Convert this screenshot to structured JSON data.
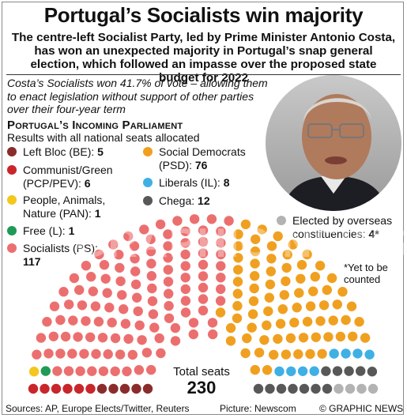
{
  "header": {
    "title": "Portugal’s Socialists win majority",
    "subtitle": "The centre-left Socialist Party, led by Prime Minister Antonio Costa, has won an unexpected majority in Portugal’s snap general election, which followed an impasse over the proposed state budget for 2022"
  },
  "intro": "Costa’s Socialists won 41.7% of vote – allowing them to enact legislation without support of other parties over their four-year term",
  "panel": {
    "title": "Portugal’s Incoming Parliament",
    "subtitle": "Results with all national seats allocated"
  },
  "legend": [
    {
      "label": "Left Bloc (BE): ",
      "value": "5",
      "color": "#8b2c2c"
    },
    {
      "label": "Communist/Green (PCP/PEV): ",
      "value": "6",
      "color": "#c8262b"
    },
    {
      "label": "People, Animals, Nature (PAN): ",
      "value": "1",
      "color": "#f3c71d"
    },
    {
      "label": "Free (L): ",
      "value": "1",
      "color": "#1f9a57"
    },
    {
      "label": "Socialists (PS): ",
      "value": "117",
      "color": "#ec6f6f"
    },
    {
      "label": "Social Democrats (PSD): ",
      "value": "76",
      "color": "#f0a020"
    },
    {
      "label": "Liberals (IL): ",
      "value": "8",
      "color": "#3fb0e4"
    },
    {
      "label": "Chega: ",
      "value": "12",
      "color": "#585858"
    },
    {
      "label": "Elected by overseas constituencies: ",
      "value": "4*",
      "color": "#b3b3b3"
    }
  ],
  "note": "*Yet to be counted",
  "total": {
    "label": "Total seats",
    "value": "230"
  },
  "footer": {
    "sources": "Sources: AP, Europe Elects/Twitter, Reuters",
    "picture": "Picture: Newscom",
    "credit": "© GRAPHIC NEWS"
  },
  "watermark": "GRAPHIC NEWS",
  "chart_data": {
    "type": "parliament",
    "total_seats": 230,
    "series": [
      {
        "name": "Left Bloc (BE)",
        "values": [
          5
        ],
        "color": "#8b2c2c"
      },
      {
        "name": "Communist/Green (PCP/PEV)",
        "values": [
          6
        ],
        "color": "#c8262b"
      },
      {
        "name": "People, Animals, Nature (PAN)",
        "values": [
          1
        ],
        "color": "#f3c71d"
      },
      {
        "name": "Free (L)",
        "values": [
          1
        ],
        "color": "#1f9a57"
      },
      {
        "name": "Socialists (PS)",
        "values": [
          117
        ],
        "color": "#ec6f6f"
      },
      {
        "name": "Social Democrats (PSD)",
        "values": [
          76
        ],
        "color": "#f0a020"
      },
      {
        "name": "Liberals (IL)",
        "values": [
          8
        ],
        "color": "#3fb0e4"
      },
      {
        "name": "Chega",
        "values": [
          12
        ],
        "color": "#585858"
      },
      {
        "name": "Elected by overseas constituencies",
        "values": [
          4
        ],
        "color": "#b3b3b3"
      }
    ]
  }
}
